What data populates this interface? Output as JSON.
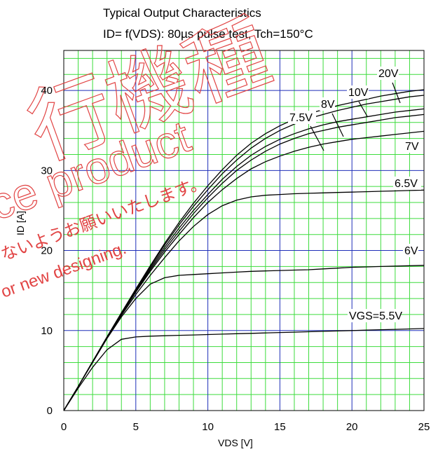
{
  "chart_data": {
    "type": "line",
    "title": "Typical Output Characteristics",
    "subtitle": "ID= f(VDS): 80µs pulse test, Tch=150°C",
    "xlabel": "VDS [V]",
    "ylabel": "ID [A]",
    "xlim": [
      0,
      25
    ],
    "ylim": [
      0,
      45
    ],
    "x_ticks": [
      "0",
      "5",
      "10",
      "15",
      "20",
      "25"
    ],
    "y_ticks": [
      "0",
      "10",
      "20",
      "30",
      "40"
    ],
    "grid": true,
    "x": [
      0,
      1,
      2,
      3,
      4,
      5,
      6,
      7,
      8,
      9,
      10,
      11,
      12,
      13,
      14,
      15,
      16,
      17,
      18,
      19,
      20,
      21,
      22,
      23,
      24,
      25
    ],
    "series": [
      {
        "name": "VGS=5.5V",
        "values": [
          0,
          2.8,
          5.4,
          7.6,
          8.9,
          9.2,
          9.3,
          9.35,
          9.4,
          9.45,
          9.5,
          9.55,
          9.6,
          9.65,
          9.7,
          9.75,
          9.8,
          9.85,
          9.9,
          9.95,
          10.0,
          10.05,
          10.1,
          10.15,
          10.2,
          10.25
        ]
      },
      {
        "name": "6V",
        "values": [
          0,
          3.0,
          6.0,
          9.0,
          11.7,
          14.0,
          15.8,
          16.6,
          16.9,
          17.0,
          17.1,
          17.2,
          17.3,
          17.4,
          17.45,
          17.5,
          17.55,
          17.6,
          17.7,
          17.8,
          17.9,
          17.95,
          18.0,
          18.05,
          18.1,
          18.15
        ]
      },
      {
        "name": "6.5V",
        "values": [
          0,
          3.0,
          6.1,
          9.1,
          11.9,
          14.5,
          16.9,
          19.1,
          21.2,
          23.0,
          24.5,
          25.6,
          26.3,
          26.7,
          26.9,
          27.0,
          27.1,
          27.15,
          27.2,
          27.25,
          27.3,
          27.35,
          27.4,
          27.45,
          27.5,
          27.55
        ]
      },
      {
        "name": "7V",
        "values": [
          0,
          3.0,
          6.1,
          9.1,
          12.0,
          14.8,
          17.4,
          19.8,
          22.0,
          24.1,
          26.0,
          27.6,
          29.0,
          30.2,
          31.1,
          31.8,
          32.4,
          32.9,
          33.3,
          33.6,
          33.9,
          34.1,
          34.3,
          34.5,
          34.7,
          34.9
        ]
      },
      {
        "name": "7.5V",
        "values": [
          0,
          3.0,
          6.1,
          9.1,
          12.0,
          14.9,
          17.6,
          20.1,
          22.4,
          24.6,
          26.6,
          28.4,
          30.0,
          31.3,
          32.4,
          33.3,
          34.0,
          34.6,
          35.0,
          35.4,
          35.7,
          36.0,
          36.3,
          36.6,
          36.8,
          37.0
        ]
      },
      {
        "name": "8V",
        "values": [
          0,
          3.0,
          6.1,
          9.2,
          12.1,
          15.0,
          17.8,
          20.4,
          22.8,
          25.0,
          27.0,
          28.9,
          30.5,
          31.9,
          33.0,
          33.9,
          34.6,
          35.2,
          35.7,
          36.1,
          36.4,
          36.7,
          37.0,
          37.3,
          37.5,
          37.7
        ]
      },
      {
        "name": "10V",
        "values": [
          0,
          3.0,
          6.1,
          9.2,
          12.2,
          15.1,
          18.0,
          20.7,
          23.2,
          25.5,
          27.6,
          29.6,
          31.3,
          32.8,
          34.0,
          35.0,
          35.8,
          36.5,
          37.0,
          37.5,
          37.9,
          38.3,
          38.6,
          38.9,
          39.2,
          39.4
        ]
      },
      {
        "name": "20V",
        "values": [
          0,
          3.0,
          6.1,
          9.2,
          12.2,
          15.2,
          18.1,
          20.9,
          23.5,
          25.9,
          28.1,
          30.1,
          31.9,
          33.4,
          34.6,
          35.6,
          36.4,
          37.1,
          37.6,
          38.1,
          38.5,
          38.9,
          39.3,
          39.6,
          39.9,
          40.1
        ]
      }
    ],
    "curve_labels": [
      "20V",
      "10V",
      "8V",
      "7.5V",
      "7V",
      "6.5V",
      "6V",
      "VGS=5.5V"
    ]
  },
  "watermark": {
    "large_text": "行機種",
    "product_text": "ce product",
    "jp_text": "ないようお願いいたします。",
    "en_text": "or new designing."
  }
}
